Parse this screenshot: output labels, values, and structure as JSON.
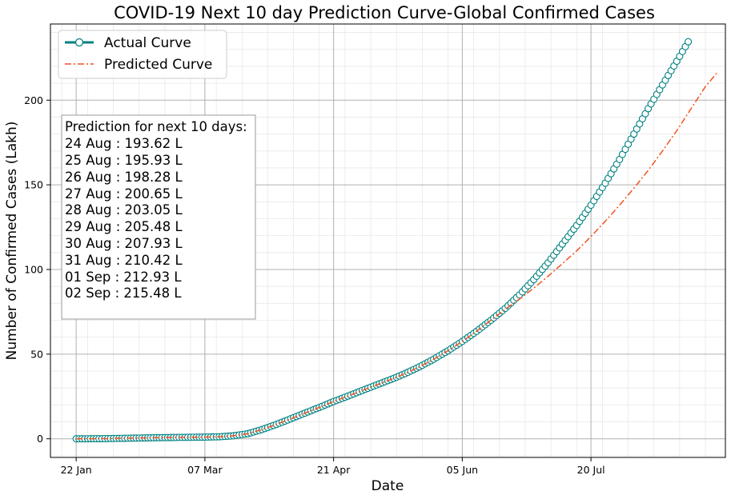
{
  "chart_data": {
    "type": "line",
    "title": "COVID-19 Next 10 day Prediction Curve-Global Confirmed Cases",
    "xlabel": "Date",
    "ylabel": "Number of Confirmed Cases (Lakh)",
    "x_start": "2020-01-22",
    "x_ticks": [
      {
        "label": "22 Jan",
        "day": 0
      },
      {
        "label": "07 Mar",
        "day": 45
      },
      {
        "label": "21 Apr",
        "day": 90
      },
      {
        "label": "05 Jun",
        "day": 135
      },
      {
        "label": "20 Jul",
        "day": 180
      }
    ],
    "y_ticks": [
      0,
      50,
      100,
      150,
      200
    ],
    "xlim": [
      -9,
      227
    ],
    "ylim": [
      -11,
      245
    ],
    "grid": true,
    "legend_position": "top-left",
    "series": [
      {
        "name": "Actual Curve",
        "style": "line-with-circle-markers",
        "color": "#008080",
        "marker_fill": "#ffffff",
        "x_range": [
          0,
          214
        ],
        "keypoints": [
          [
            0,
            0.0
          ],
          [
            10,
            0.1
          ],
          [
            20,
            0.4
          ],
          [
            30,
            0.7
          ],
          [
            40,
            0.9
          ],
          [
            45,
            1.0
          ],
          [
            50,
            1.2
          ],
          [
            55,
            1.8
          ],
          [
            60,
            3.0
          ],
          [
            65,
            5.5
          ],
          [
            70,
            8.5
          ],
          [
            75,
            11.8
          ],
          [
            80,
            15.2
          ],
          [
            85,
            18.5
          ],
          [
            90,
            22.0
          ],
          [
            95,
            25.2
          ],
          [
            100,
            28.5
          ],
          [
            105,
            31.8
          ],
          [
            110,
            35.0
          ],
          [
            115,
            38.5
          ],
          [
            120,
            42.5
          ],
          [
            125,
            47.0
          ],
          [
            130,
            52.0
          ],
          [
            135,
            57.5
          ],
          [
            140,
            63.5
          ],
          [
            145,
            70.0
          ],
          [
            150,
            77.0
          ],
          [
            155,
            85.0
          ],
          [
            160,
            94.0
          ],
          [
            165,
            104.0
          ],
          [
            170,
            115.0
          ],
          [
            175,
            126.0
          ],
          [
            180,
            138.0
          ],
          [
            185,
            151.0
          ],
          [
            190,
            165.0
          ],
          [
            195,
            180.0
          ],
          [
            200,
            195.0
          ],
          [
            205,
            209.0
          ],
          [
            210,
            223.0
          ],
          [
            214,
            234.5
          ]
        ]
      },
      {
        "name": "Predicted Curve",
        "style": "dash-dot",
        "color": "#f4511e",
        "x_range": [
          0,
          224
        ],
        "keypoints": [
          [
            0,
            0.0
          ],
          [
            10,
            0.1
          ],
          [
            20,
            0.4
          ],
          [
            30,
            0.7
          ],
          [
            40,
            0.9
          ],
          [
            45,
            1.0
          ],
          [
            50,
            1.2
          ],
          [
            55,
            1.8
          ],
          [
            60,
            3.0
          ],
          [
            65,
            5.5
          ],
          [
            70,
            8.5
          ],
          [
            75,
            11.8
          ],
          [
            80,
            15.2
          ],
          [
            85,
            18.5
          ],
          [
            90,
            22.0
          ],
          [
            95,
            25.2
          ],
          [
            100,
            28.5
          ],
          [
            105,
            31.8
          ],
          [
            110,
            35.0
          ],
          [
            115,
            38.5
          ],
          [
            120,
            42.5
          ],
          [
            125,
            47.0
          ],
          [
            130,
            52.0
          ],
          [
            135,
            57.5
          ],
          [
            140,
            63.5
          ],
          [
            145,
            70.0
          ],
          [
            150,
            76.5
          ],
          [
            155,
            82.5
          ],
          [
            160,
            89.0
          ],
          [
            165,
            96.0
          ],
          [
            170,
            103.5
          ],
          [
            175,
            111.0
          ],
          [
            180,
            119.5
          ],
          [
            185,
            128.5
          ],
          [
            190,
            138.0
          ],
          [
            195,
            148.0
          ],
          [
            200,
            158.5
          ],
          [
            205,
            170.0
          ],
          [
            210,
            182.0
          ],
          [
            215,
            195.0
          ],
          [
            220,
            208.0
          ],
          [
            224,
            216.0
          ]
        ]
      }
    ],
    "annotation": {
      "lines": [
        "Prediction for next 10 days:",
        "24 Aug : 193.62 L",
        "25 Aug : 195.93 L",
        "26 Aug : 198.28 L",
        "27 Aug : 200.65 L",
        "28 Aug : 203.05 L",
        "29 Aug : 205.48 L",
        "30 Aug : 207.93 L",
        "31 Aug : 210.42 L",
        "01 Sep : 212.93 L",
        "02 Sep : 215.48 L"
      ]
    }
  }
}
